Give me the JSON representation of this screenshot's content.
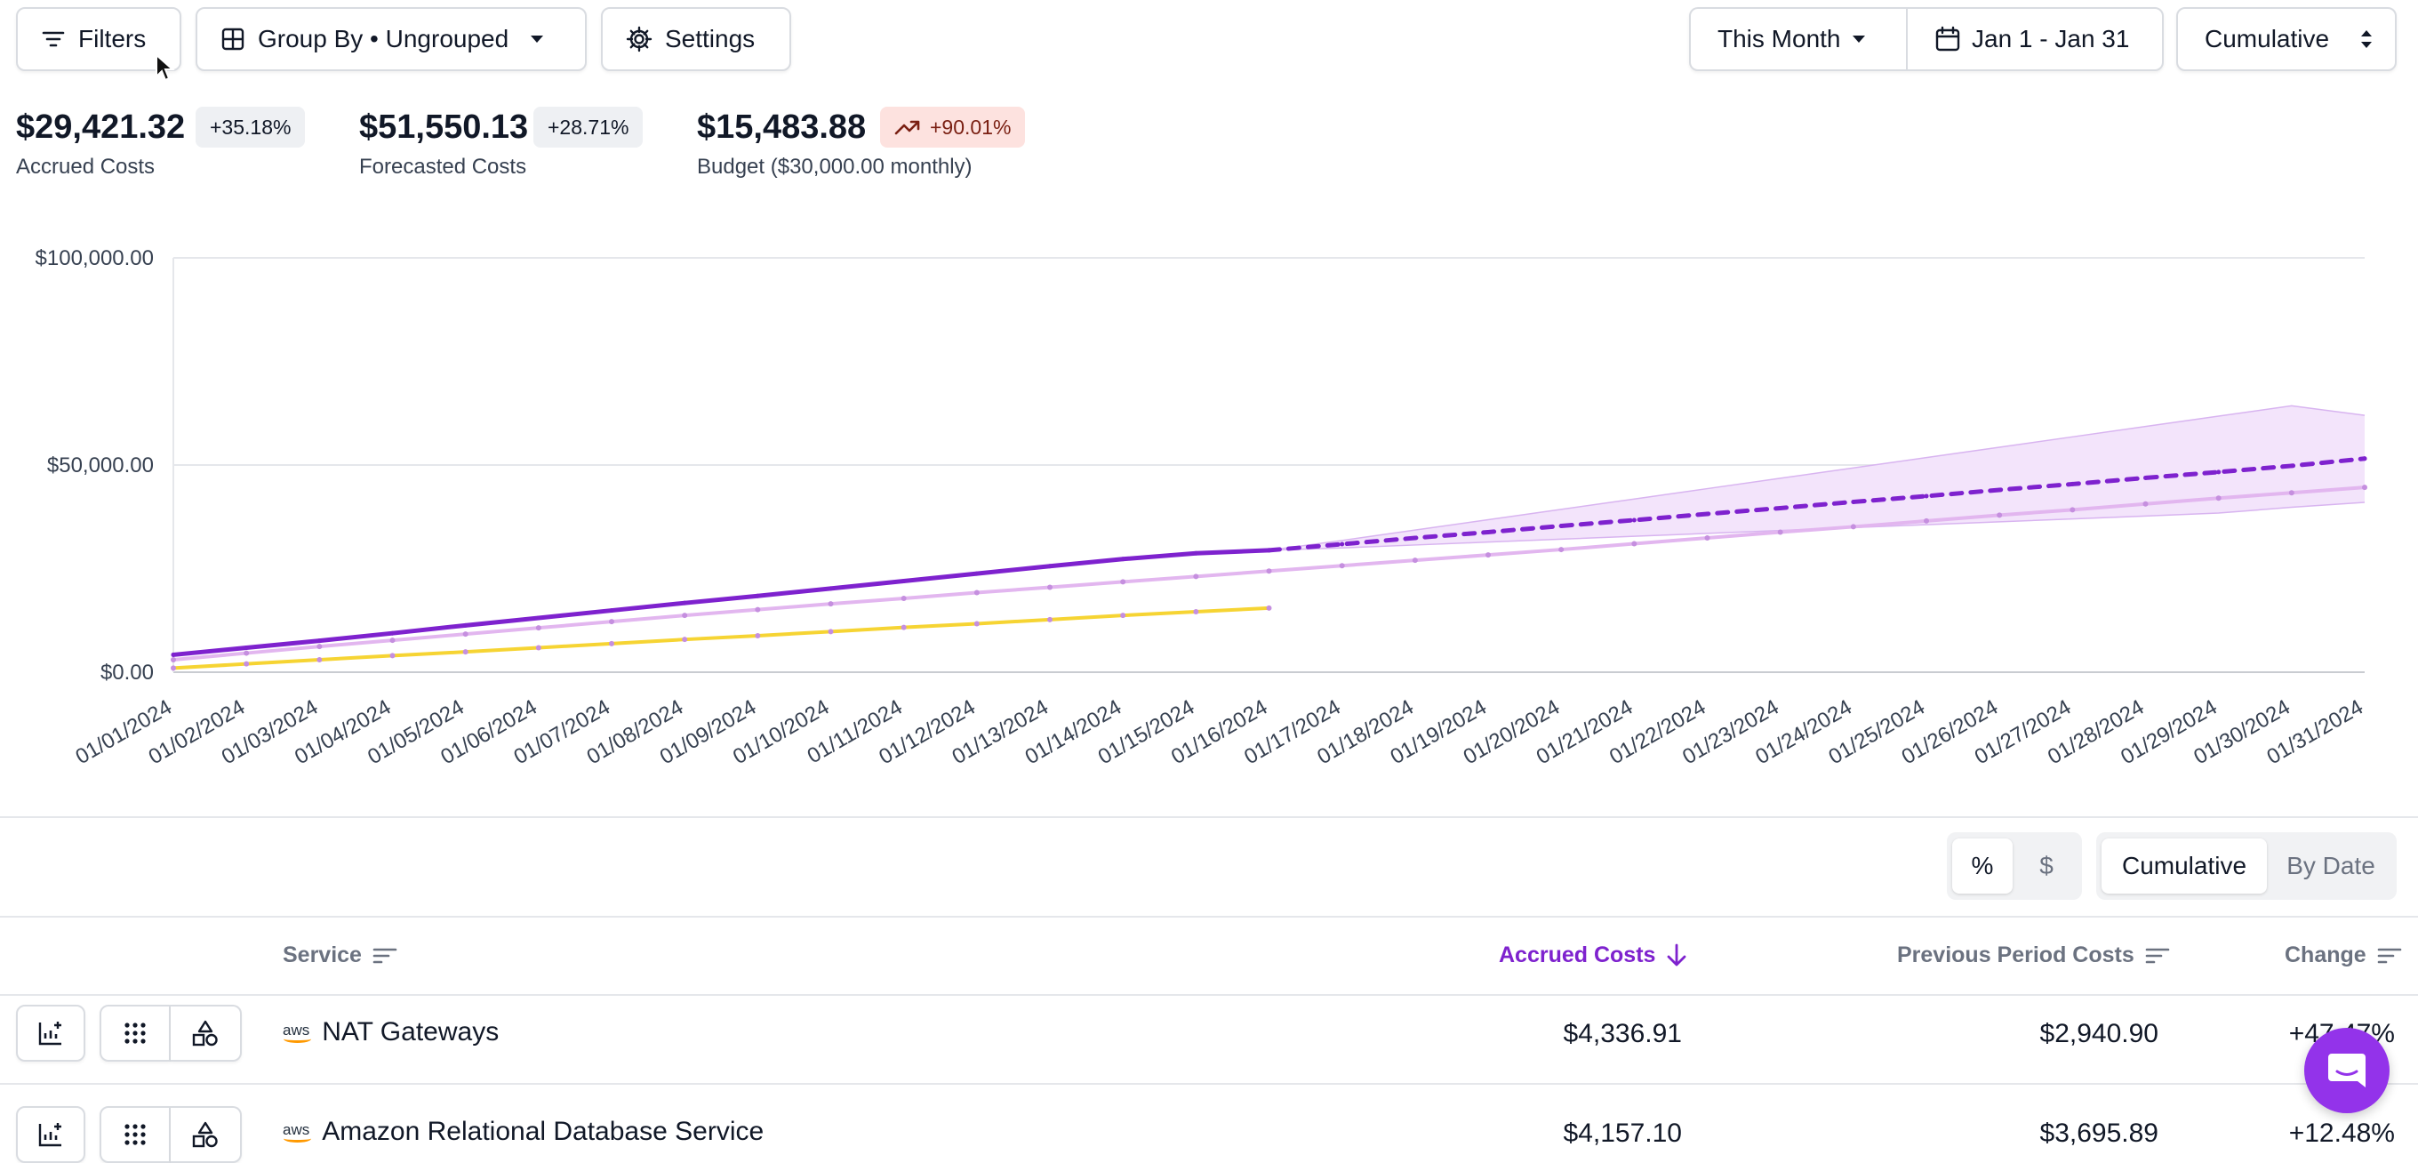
{
  "toolbar": {
    "filters_label": "Filters",
    "group_by_label": "Group By • Ungrouped",
    "settings_label": "Settings",
    "period_label": "This Month",
    "date_range_label": "Jan 1 - Jan 31",
    "mode_label": "Cumulative"
  },
  "kpis": [
    {
      "value": "$29,421.32",
      "change": "+35.18%",
      "label": "Accrued Costs"
    },
    {
      "value": "$51,550.13",
      "change": "+28.71%",
      "label": "Forecasted Costs"
    },
    {
      "value": "$15,483.88",
      "change": "+90.01%",
      "label": "Budget ($30,000.00 monthly)"
    }
  ],
  "colors": {
    "accent": "#7e22ce",
    "current": "#7e22ce",
    "previous": "#e2b6ef",
    "budget": "#f6d433",
    "forecast_band": "#f3e4fb",
    "badge_red_bg": "#fde2df",
    "chat": "#9333ea"
  },
  "chart_data": {
    "type": "line",
    "x": [
      "01/01/2024",
      "01/02/2024",
      "01/03/2024",
      "01/04/2024",
      "01/05/2024",
      "01/06/2024",
      "01/07/2024",
      "01/08/2024",
      "01/09/2024",
      "01/10/2024",
      "01/11/2024",
      "01/12/2024",
      "01/13/2024",
      "01/14/2024",
      "01/15/2024",
      "01/16/2024",
      "01/17/2024",
      "01/18/2024",
      "01/19/2024",
      "01/20/2024",
      "01/21/2024",
      "01/22/2024",
      "01/23/2024",
      "01/24/2024",
      "01/25/2024",
      "01/26/2024",
      "01/27/2024",
      "01/28/2024",
      "01/29/2024",
      "01/30/2024",
      "01/31/2024"
    ],
    "y_ticks": [
      "$0.00",
      "$50,000.00",
      "$100,000.00"
    ],
    "ylim": [
      0,
      100000
    ],
    "grid": true,
    "series": [
      {
        "name": "",
        "style": "solid",
        "values": [
          4200,
          5900,
          7600,
          9400,
          11300,
          13100,
          14900,
          16700,
          18400,
          20200,
          22000,
          23800,
          25600,
          27300,
          28700,
          29421,
          null,
          null,
          null,
          null,
          null,
          null,
          null,
          null,
          null,
          null,
          null,
          null,
          null,
          null,
          null
        ]
      },
      {
        "name": "",
        "style": "dashed",
        "values": [
          null,
          null,
          null,
          null,
          null,
          null,
          null,
          null,
          null,
          null,
          null,
          null,
          null,
          null,
          null,
          29421,
          30900,
          32400,
          33800,
          35300,
          36700,
          38200,
          39600,
          41100,
          42500,
          44000,
          45400,
          46900,
          48300,
          49800,
          51550
        ]
      },
      {
        "name": "",
        "style": "solid",
        "values": [
          3000,
          4600,
          6200,
          7700,
          9200,
          10700,
          12200,
          13700,
          15100,
          16500,
          17800,
          19200,
          20500,
          21800,
          23100,
          24400,
          25700,
          27000,
          28300,
          29600,
          31000,
          32400,
          33800,
          35100,
          36500,
          37900,
          39200,
          40600,
          42000,
          43300,
          44600
        ]
      },
      {
        "name": "",
        "style": "solid",
        "values": [
          1000,
          2000,
          3000,
          4000,
          4900,
          5900,
          6900,
          7900,
          8800,
          9800,
          10800,
          11700,
          12700,
          13700,
          14600,
          15484,
          null,
          null,
          null,
          null,
          null,
          null,
          null,
          null,
          null,
          null,
          null,
          null,
          null,
          null,
          null
        ]
      }
    ],
    "forecast_band": {
      "upper": [
        null,
        null,
        null,
        null,
        null,
        null,
        null,
        null,
        null,
        null,
        null,
        null,
        null,
        null,
        null,
        29421,
        31800,
        34300,
        36800,
        39300,
        41800,
        44300,
        46800,
        49300,
        51800,
        54300,
        56800,
        59300,
        61800,
        64300,
        62000
      ],
      "lower": [
        null,
        null,
        null,
        null,
        null,
        null,
        null,
        null,
        null,
        null,
        null,
        null,
        null,
        null,
        null,
        29421,
        30000,
        30700,
        31400,
        32100,
        32800,
        33500,
        34200,
        34900,
        35600,
        36300,
        37000,
        37700,
        38400,
        39800,
        41000
      ]
    }
  },
  "table_controls": {
    "percent_label": "%",
    "dollar_label": "$",
    "cumulative_label": "Cumulative",
    "by_date_label": "By Date"
  },
  "table": {
    "headers": {
      "service": "Service",
      "accrued": "Accrued Costs",
      "previous": "Previous Period Costs",
      "change": "Change"
    },
    "rows": [
      {
        "provider": "aws",
        "service": "NAT Gateways",
        "accrued": "$4,336.91",
        "previous": "$2,940.90",
        "change": "+47.47%"
      },
      {
        "provider": "aws",
        "service": "Amazon Relational Database Service",
        "accrued": "$4,157.10",
        "previous": "$3,695.89",
        "change": "+12.48%"
      }
    ]
  }
}
